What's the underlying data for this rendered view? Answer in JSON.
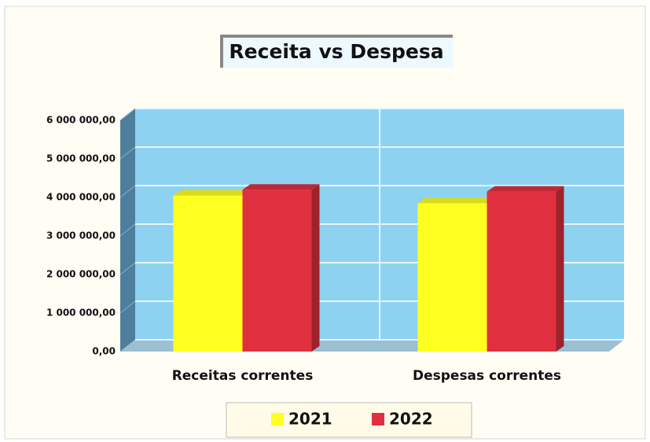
{
  "chart_data": {
    "type": "bar3d",
    "title": "Receita  vs  Despesa",
    "categories": [
      "Receitas correntes",
      "Despesas correntes"
    ],
    "series": [
      {
        "name": "2021",
        "color": "#ffff22",
        "values": [
          4050000,
          3850000
        ]
      },
      {
        "name": "2022",
        "color": "#e0303f",
        "values": [
          4200000,
          4150000
        ]
      }
    ],
    "ylim": [
      0,
      6000000
    ],
    "yticks": [
      {
        "value": 0,
        "label": "0,00"
      },
      {
        "value": 1000000,
        "label": "1 000 000,00"
      },
      {
        "value": 2000000,
        "label": "2 000 000,00"
      },
      {
        "value": 3000000,
        "label": "3 000 000,00"
      },
      {
        "value": 4000000,
        "label": "4 000 000,00"
      },
      {
        "value": 5000000,
        "label": "5 000 000,00"
      },
      {
        "value": 6000000,
        "label": "6 000 000,00"
      }
    ],
    "grid": true,
    "legend": "bottom"
  }
}
